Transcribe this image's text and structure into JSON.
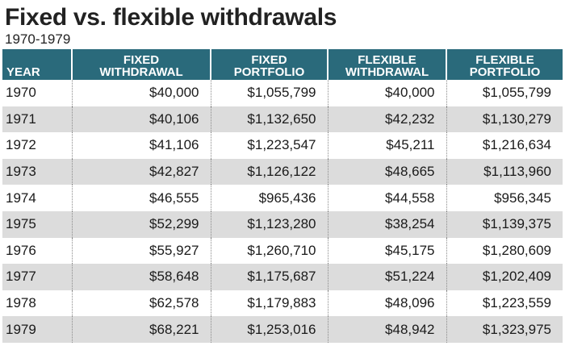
{
  "title": "Fixed vs. flexible withdrawals",
  "subtitle": "1970-1979",
  "colors": {
    "header_bg": "#2a6a7b",
    "stripe": "#dcdcdc"
  },
  "chart_data": {
    "type": "table",
    "columns": [
      {
        "line1": "",
        "line2": "YEAR"
      },
      {
        "line1": "FIXED",
        "line2": "WITHDRAWAL"
      },
      {
        "line1": "FIXED",
        "line2": "PORTFOLIO"
      },
      {
        "line1": "FLEXIBLE",
        "line2": "WITHDRAWAL"
      },
      {
        "line1": "FLEXIBLE",
        "line2": "PORTFOLIO"
      }
    ],
    "rows": [
      [
        "1970",
        "$40,000",
        "$1,055,799",
        "$40,000",
        "$1,055,799"
      ],
      [
        "1971",
        "$40,106",
        "$1,132,650",
        "$42,232",
        "$1,130,279"
      ],
      [
        "1972",
        "$41,106",
        "$1,223,547",
        "$45,211",
        "$1,216,634"
      ],
      [
        "1973",
        "$42,827",
        "$1,126,122",
        "$48,665",
        "$1,113,960"
      ],
      [
        "1974",
        "$46,555",
        "$965,436",
        "$44,558",
        "$956,345"
      ],
      [
        "1975",
        "$52,299",
        "$1,123,280",
        "$38,254",
        "$1,139,375"
      ],
      [
        "1976",
        "$55,927",
        "$1,260,710",
        "$45,175",
        "$1,280,609"
      ],
      [
        "1977",
        "$58,648",
        "$1,175,687",
        "$51,224",
        "$1,202,409"
      ],
      [
        "1978",
        "$62,578",
        "$1,179,883",
        "$48,096",
        "$1,223,559"
      ],
      [
        "1979",
        "$68,221",
        "$1,253,016",
        "$48,942",
        "$1,323,975"
      ]
    ]
  }
}
